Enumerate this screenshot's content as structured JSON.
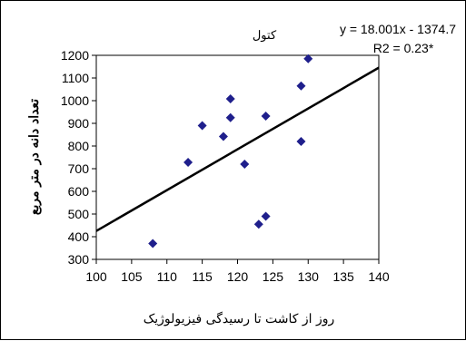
{
  "chart_data": {
    "type": "scatter",
    "title": "کتول",
    "xlabel": "روز از کاشت تا رسیدگی فیزیولوژیک",
    "ylabel": "تعداد دانه در متر مربع",
    "xlim": [
      100,
      140
    ],
    "ylim": [
      300,
      1200
    ],
    "xticks": [
      "100",
      "105",
      "110",
      "115",
      "120",
      "125",
      "130",
      "135",
      "140"
    ],
    "yticks": [
      "300",
      "400",
      "500",
      "600",
      "700",
      "800",
      "900",
      "1000",
      "1100",
      "1200"
    ],
    "grid": false,
    "series": [
      {
        "marker": "diamond",
        "color": "#1f1f8c",
        "points": [
          {
            "x": 108,
            "y": 370
          },
          {
            "x": 113,
            "y": 728
          },
          {
            "x": 115,
            "y": 890
          },
          {
            "x": 118,
            "y": 842
          },
          {
            "x": 119,
            "y": 1008
          },
          {
            "x": 119,
            "y": 925
          },
          {
            "x": 121,
            "y": 720
          },
          {
            "x": 123,
            "y": 455
          },
          {
            "x": 124,
            "y": 932
          },
          {
            "x": 124,
            "y": 490
          },
          {
            "x": 129,
            "y": 1065
          },
          {
            "x": 129,
            "y": 820
          },
          {
            "x": 130,
            "y": 1185
          }
        ]
      }
    ],
    "trendline": {
      "slope": 18.001,
      "intercept": -1374.7,
      "equation_label": "y = 18.001x - 1374.7",
      "r2_label": "R2 = 0.23*",
      "color": "#000000"
    }
  }
}
